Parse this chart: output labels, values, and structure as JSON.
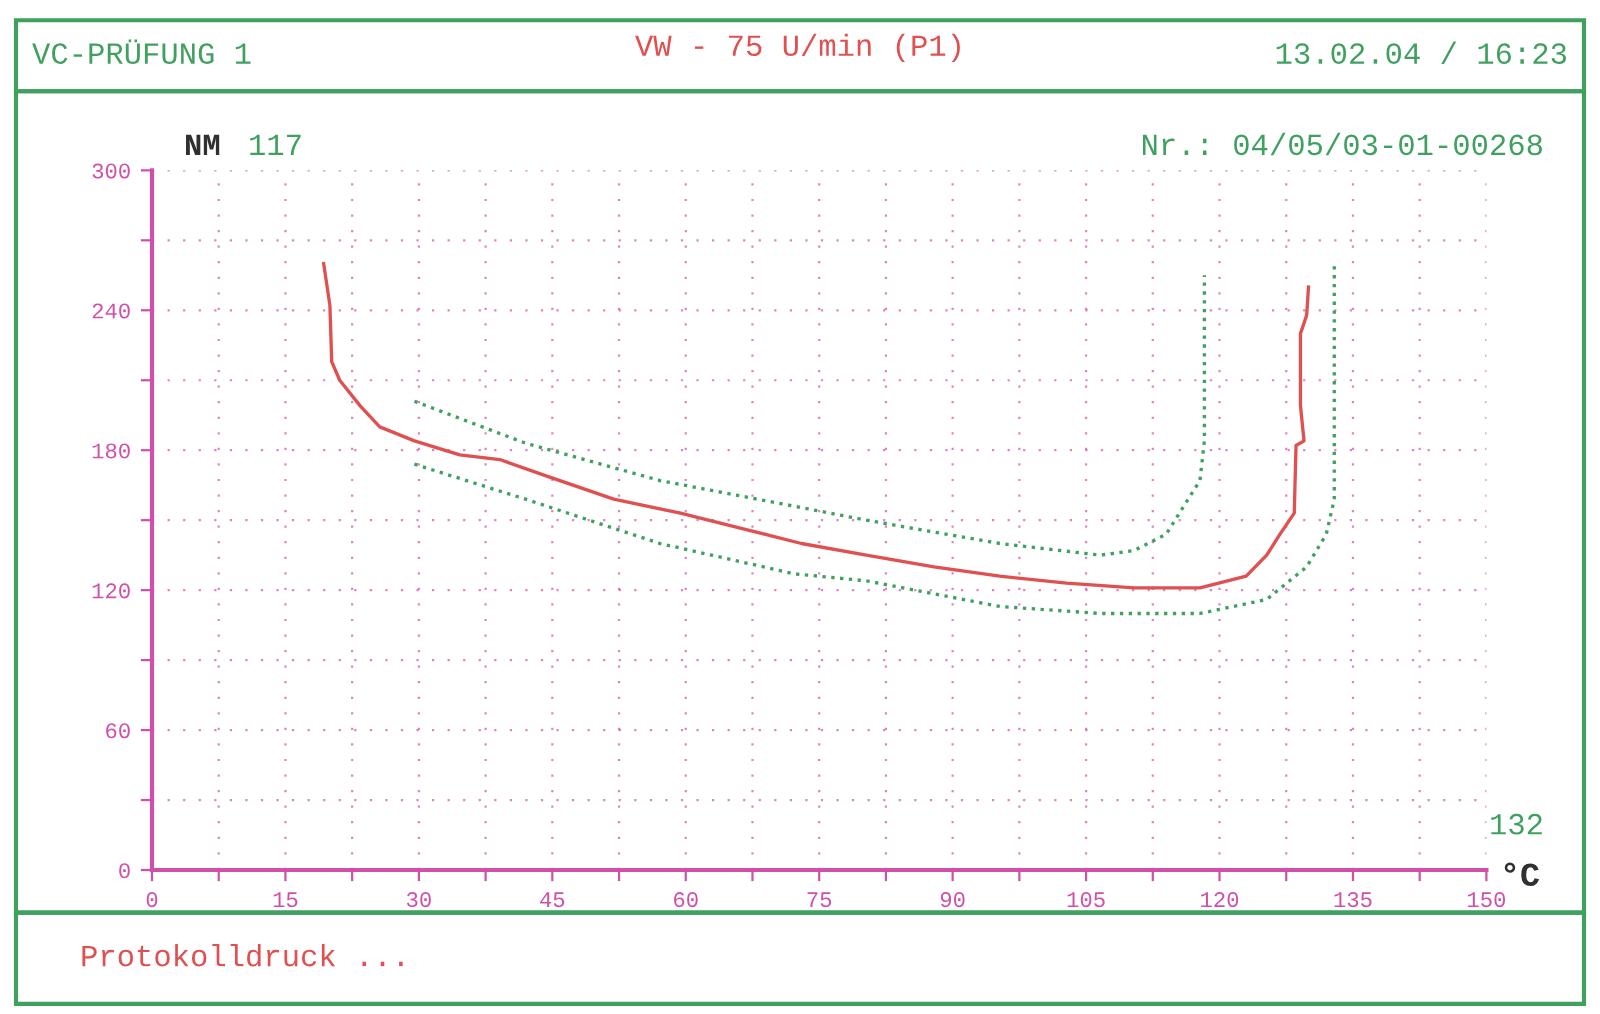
{
  "chart_data": {
    "type": "line",
    "title": "VW - 75 U/min (P1)",
    "subtitle": "VC-PRÜFUNG 1",
    "xlabel": "°C",
    "ylabel": "NM",
    "annotations": [
      "13.02.04 / 16:23",
      "Nr.: 04/05/03-01-00268",
      "117",
      "132",
      "Protokolldruck ..."
    ],
    "xlim": [
      0,
      150
    ],
    "ylim": [
      0,
      300
    ],
    "xticks": [
      0,
      {
        "value": 7.5,
        "label": null
      },
      15,
      {
        "value": 22.5,
        "label": null
      },
      30,
      {
        "value": 37.5,
        "label": null
      },
      45,
      {
        "value": 52.5,
        "label": null
      },
      60,
      {
        "value": 67.5,
        "label": null
      },
      75,
      {
        "value": 82.5,
        "label": null
      },
      90,
      {
        "value": 97.5,
        "label": null
      },
      105,
      {
        "value": 112.5,
        "label": null
      },
      120,
      {
        "value": 127.5,
        "label": null
      },
      135,
      {
        "value": 142.5,
        "label": null
      },
      150
    ],
    "yticks": [
      0,
      {
        "value": 30,
        "label": null
      },
      60,
      {
        "value": 90,
        "label": null
      },
      120,
      {
        "value": 150,
        "label": null
      },
      180,
      {
        "value": 210,
        "label": null
      },
      240,
      {
        "value": 270,
        "label": null
      },
      300
    ],
    "grid": true,
    "marker": "none",
    "series": [
      {
        "color": "#e05050",
        "line_style": "solid",
        "x": [
          19.3,
          20,
          20.2,
          21.1,
          23.4,
          25.6,
          29.5,
          34.6,
          39.1,
          44.3,
          51.9,
          59.4,
          66.8,
          73,
          80.3,
          87.9,
          95.3,
          102.8,
          110.4,
          117.8,
          123,
          125.3,
          126.8,
          128.4,
          128.6,
          129.5,
          129.1,
          129.1,
          129.8,
          130
        ],
        "values": [
          260,
          242,
          218,
          210,
          199,
          190,
          184,
          178,
          176,
          169,
          159,
          153,
          146,
          140,
          135,
          130,
          126,
          123,
          121,
          121,
          126,
          135,
          144,
          153,
          182,
          184,
          199,
          230,
          238,
          250
        ]
      },
      {
        "color": "#40a060",
        "line_style": "dotted",
        "x": [
          29.5,
          42,
          57.1,
          72.2,
          80.3,
          95.3,
          106.6,
          110.4,
          114,
          117.8,
          118.3,
          118.3
        ],
        "values": [
          201,
          183,
          167,
          156,
          150,
          140,
          135,
          137,
          144,
          167,
          184,
          255
        ]
      },
      {
        "color": "#40a060",
        "line_style": "dotted",
        "x": [
          29.5,
          42,
          57.1,
          72.2,
          80.3,
          95.3,
          106.6,
          117.8,
          125.3,
          129.8,
          132,
          132.9,
          132.9
        ],
        "values": [
          174,
          159,
          140,
          127,
          124,
          113,
          110,
          110,
          116,
          130,
          144,
          159,
          259
        ]
      }
    ]
  }
}
